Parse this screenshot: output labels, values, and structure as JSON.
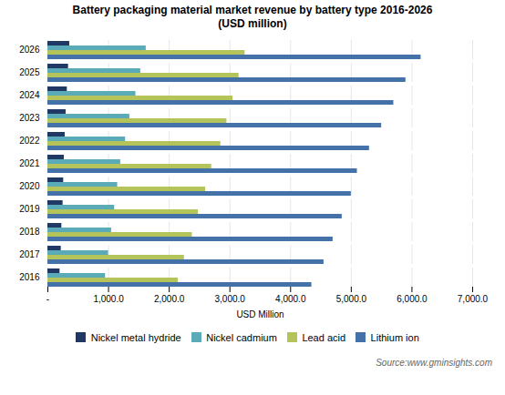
{
  "chart_data": {
    "type": "bar",
    "orientation": "horizontal",
    "title": "Battery packaging material market revenue by battery type 2016-2026",
    "subtitle": "(USD million)",
    "xlabel": "USD Million",
    "annotation": "Source:www.gminsights.com",
    "categories": [
      "2026",
      "2025",
      "2024",
      "2023",
      "2022",
      "2021",
      "2020",
      "2019",
      "2018",
      "2017",
      "2016"
    ],
    "series": [
      {
        "name": "Nickel metal hydride",
        "color": "#1f3864",
        "values": [
          360,
          340,
          320,
          300,
          285,
          270,
          260,
          250,
          230,
          220,
          200
        ]
      },
      {
        "name": "Nickel cadmium",
        "color": "#5baab8",
        "values": [
          1620,
          1530,
          1450,
          1350,
          1280,
          1200,
          1150,
          1100,
          1050,
          1000,
          950
        ]
      },
      {
        "name": "Lead acid",
        "color": "#b5c45a",
        "values": [
          3250,
          3150,
          3050,
          2950,
          2850,
          2700,
          2600,
          2480,
          2380,
          2250,
          2150
        ]
      },
      {
        "name": "Lithium ion",
        "color": "#4472a8",
        "values": [
          6150,
          5900,
          5700,
          5500,
          5300,
          5100,
          5000,
          4850,
          4700,
          4550,
          4350
        ]
      }
    ],
    "xlim": [
      0,
      7000
    ],
    "xticks": [
      {
        "value": 0,
        "label": "-"
      },
      {
        "value": 1000,
        "label": "1,000.0"
      },
      {
        "value": 2000,
        "label": "2,000.0"
      },
      {
        "value": 3000,
        "label": "3,000.0"
      },
      {
        "value": 4000,
        "label": "4,000.0"
      },
      {
        "value": 5000,
        "label": "5,000.0"
      },
      {
        "value": 6000,
        "label": "6,000.0"
      },
      {
        "value": 7000,
        "label": "7,000.0"
      }
    ],
    "grid": true,
    "legend": "bottom"
  }
}
